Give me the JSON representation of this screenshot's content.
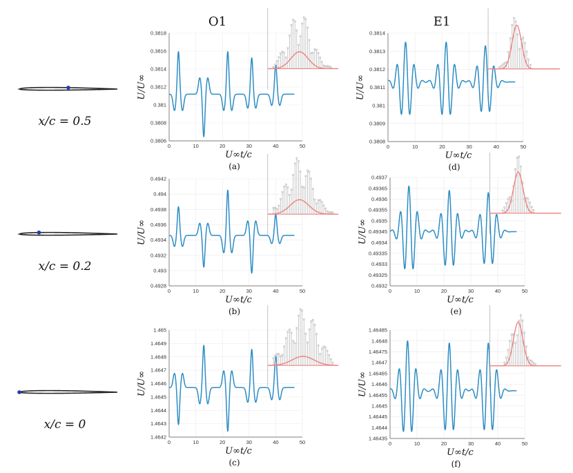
{
  "columns": [
    "O1",
    "E1"
  ],
  "airfoil_labels": [
    "x/c = 0.5",
    "x/c = 0.2",
    "x/c = 0"
  ],
  "airfoil_sensor_xc": [
    0.5,
    0.2,
    0.0
  ],
  "colors": {
    "signal": "#2b8cc4",
    "spectrum_fit": "#f08080",
    "spectrum_stem": "#bbbbbb",
    "sensor_dot": "#1f3fae"
  },
  "chart_data": [
    {
      "id": "a",
      "panel": "(a)",
      "type": "line",
      "column": "O1",
      "sensor": "x/c = 0.5",
      "xlabel": "U∞t/c",
      "ylabel": "U/U∞",
      "xlim": [
        0,
        50
      ],
      "ylim": [
        0.3806,
        0.3818
      ],
      "xticks": [
        "0",
        "10",
        "20",
        "30",
        "40",
        "50"
      ],
      "yticks": [
        "0.3806",
        "0.3808",
        "0.381",
        "0.3812",
        "0.3814",
        "0.3816",
        "0.3818"
      ],
      "series": [
        {
          "name": "U/U∞",
          "base": 0.38112,
          "x_end": 47,
          "events": [
            {
              "x": 3.5,
              "amp": 0.00048
            },
            {
              "x": 13,
              "amp": -0.00048
            },
            {
              "x": 22,
              "amp": 0.00048
            },
            {
              "x": 31,
              "amp": 0.00041
            },
            {
              "x": 40,
              "amp": 0.00033
            }
          ]
        }
      ],
      "inset": {
        "type": "spectrum",
        "peak_position": 0.45,
        "peak_height": 0.28,
        "sigma": 0.22
      }
    },
    {
      "id": "b",
      "panel": "(b)",
      "type": "line",
      "column": "O1",
      "sensor": "x/c = 0.2",
      "xlabel": "U∞t/c",
      "ylabel": "U/U∞",
      "xlim": [
        0,
        50
      ],
      "ylim": [
        0.4928,
        0.4942
      ],
      "xticks": [
        "0",
        "10",
        "20",
        "30",
        "40",
        "50"
      ],
      "yticks": [
        "0.4928",
        "0.493",
        "0.4932",
        "0.4934",
        "0.4936",
        "0.4938",
        "0.494",
        "0.4942"
      ],
      "series": [
        {
          "name": "U/U∞",
          "base": 0.49346,
          "x_end": 47,
          "events": [
            {
              "x": 3.5,
              "amp": 0.00038
            },
            {
              "x": 13,
              "amp": -0.00042
            },
            {
              "x": 22,
              "amp": 0.0006
            },
            {
              "x": 31,
              "amp": -0.0005
            },
            {
              "x": 40,
              "amp": 0.00028
            }
          ]
        }
      ],
      "inset": {
        "type": "spectrum",
        "peak_position": 0.45,
        "peak_height": 0.24,
        "sigma": 0.24
      }
    },
    {
      "id": "c",
      "panel": "(c)",
      "type": "line",
      "column": "O1",
      "sensor": "x/c = 0",
      "xlabel": "U∞t/c",
      "ylabel": "U/U∞",
      "xlim": [
        0,
        50
      ],
      "ylim": [
        1.4642,
        1.465
      ],
      "xticks": [
        "0",
        "10",
        "20",
        "30",
        "40",
        "50"
      ],
      "yticks": [
        "1.4642",
        "1.4643",
        "1.4644",
        "1.4645",
        "1.4646",
        "1.4647",
        "1.4648",
        "1.4649",
        "1.465"
      ],
      "series": [
        {
          "name": "U/U∞",
          "base": 1.46457,
          "x_end": 47,
          "events": [
            {
              "x": 3.5,
              "amp": -0.00028
            },
            {
              "x": 13,
              "amp": 0.00032
            },
            {
              "x": 22,
              "amp": -0.00033
            },
            {
              "x": 31,
              "amp": 0.00029
            },
            {
              "x": 40,
              "amp": 0.00024
            }
          ]
        }
      ],
      "inset": {
        "type": "spectrum",
        "peak_position": 0.5,
        "peak_height": 0.15,
        "sigma": 0.28
      }
    },
    {
      "id": "d",
      "panel": "(d)",
      "type": "line",
      "column": "E1",
      "sensor": "x/c = 0.5",
      "xlabel": "U∞t/c",
      "ylabel": "U/U∞",
      "xlim": [
        0,
        50
      ],
      "ylim": [
        0.3808,
        0.3814
      ],
      "xticks": [
        "0",
        "10",
        "20",
        "30",
        "40",
        "50"
      ],
      "yticks": [
        "0.3808",
        "0.3809",
        "0.381",
        "0.3811",
        "0.3812",
        "0.3813",
        "0.3814"
      ],
      "series": [
        {
          "name": "U/U∞",
          "base": 0.38113,
          "x_end": 47,
          "events": [
            {
              "x": 6.5,
              "amp": 0.00022
            },
            {
              "x": 21.5,
              "amp": 0.00022
            },
            {
              "x": 36,
              "amp": 0.0002
            }
          ]
        }
      ],
      "inset": {
        "type": "spectrum",
        "peak_position": 0.4,
        "peak_height": 0.72,
        "sigma": 0.12
      }
    },
    {
      "id": "e",
      "panel": "(e)",
      "type": "line",
      "column": "E1",
      "sensor": "x/c = 0.2",
      "xlabel": "U∞t/c",
      "ylabel": "U/U∞",
      "xlim": [
        0,
        50
      ],
      "ylim": [
        0.4932,
        0.4937
      ],
      "xticks": [
        "0",
        "10",
        "20",
        "30",
        "40",
        "50"
      ],
      "yticks": [
        "0.4932",
        "0.49325",
        "0.4933",
        "0.49335",
        "0.4934",
        "0.49345",
        "0.4935",
        "0.49355",
        "0.4936",
        "0.49365",
        "0.4937"
      ],
      "series": [
        {
          "name": "U/U∞",
          "base": 0.49345,
          "x_end": 47,
          "events": [
            {
              "x": 7,
              "amp": 0.00021
            },
            {
              "x": 22,
              "amp": 0.00019
            },
            {
              "x": 36.5,
              "amp": 0.00018
            }
          ]
        }
      ],
      "inset": {
        "type": "spectrum",
        "peak_position": 0.4,
        "peak_height": 0.68,
        "sigma": 0.12
      }
    },
    {
      "id": "f",
      "panel": "(f)",
      "type": "line",
      "column": "E1",
      "sensor": "x/c = 0",
      "xlabel": "U∞t/c",
      "ylabel": "U/U∞",
      "xlim": [
        0,
        50
      ],
      "ylim": [
        1.46435,
        1.46485
      ],
      "xticks": [
        "0",
        "10",
        "20",
        "30",
        "40",
        "50"
      ],
      "yticks": [
        "1.46435",
        "1.4644",
        "1.46445",
        "1.4645",
        "1.46455",
        "1.4646",
        "1.46465",
        "1.4647",
        "1.46475",
        "1.4648",
        "1.46485"
      ],
      "series": [
        {
          "name": "U/U∞",
          "base": 1.46457,
          "x_end": 47,
          "events": [
            {
              "x": 6.5,
              "amp": 0.00023
            },
            {
              "x": 22,
              "amp": 0.00022
            },
            {
              "x": 36.5,
              "amp": 0.00022
            }
          ]
        }
      ],
      "inset": {
        "type": "spectrum",
        "peak_position": 0.4,
        "peak_height": 0.72,
        "sigma": 0.12
      }
    }
  ]
}
